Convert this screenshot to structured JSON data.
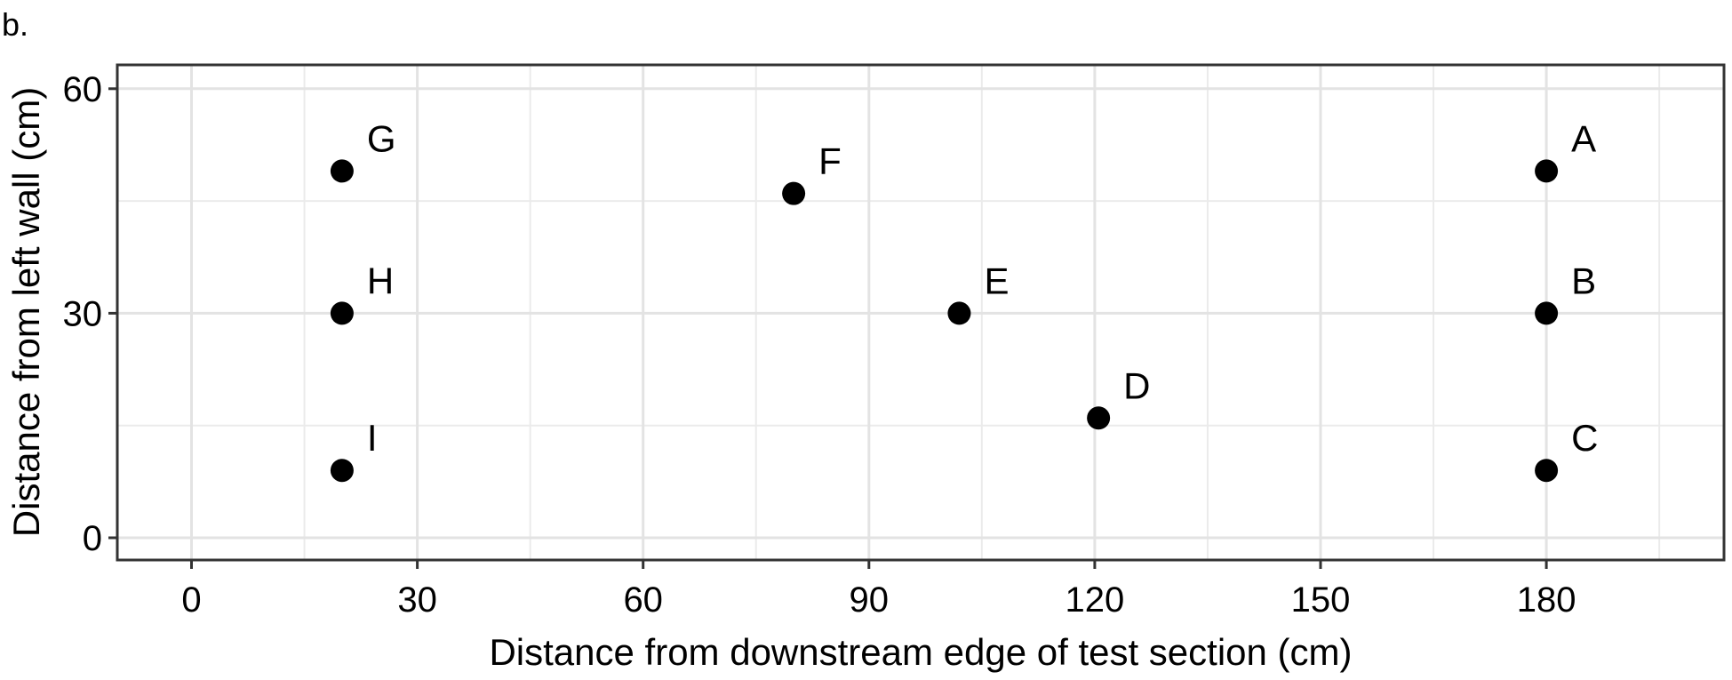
{
  "panel_label": "b.",
  "chart_data": {
    "type": "scatter",
    "title": "",
    "xlabel": "Distance from downstream edge of test section (cm)",
    "ylabel": "Distance from left wall (cm)",
    "xlim": [
      -10,
      200
    ],
    "ylim": [
      -3,
      63
    ],
    "x_ticks": [
      0,
      30,
      60,
      90,
      120,
      150,
      180
    ],
    "y_ticks": [
      0,
      30,
      60
    ],
    "x_minor_grid": [
      15,
      45,
      75,
      105,
      135,
      165,
      195
    ],
    "y_minor_grid": [
      15,
      45
    ],
    "grid": true,
    "point_color": "#000000",
    "points": [
      {
        "label": "A",
        "x": 180,
        "y": 49
      },
      {
        "label": "B",
        "x": 180,
        "y": 30
      },
      {
        "label": "C",
        "x": 180,
        "y": 9
      },
      {
        "label": "D",
        "x": 120.5,
        "y": 16
      },
      {
        "label": "E",
        "x": 102,
        "y": 30
      },
      {
        "label": "F",
        "x": 80,
        "y": 46
      },
      {
        "label": "G",
        "x": 20,
        "y": 49
      },
      {
        "label": "H",
        "x": 20,
        "y": 30
      },
      {
        "label": "I",
        "x": 20,
        "y": 9
      }
    ]
  }
}
